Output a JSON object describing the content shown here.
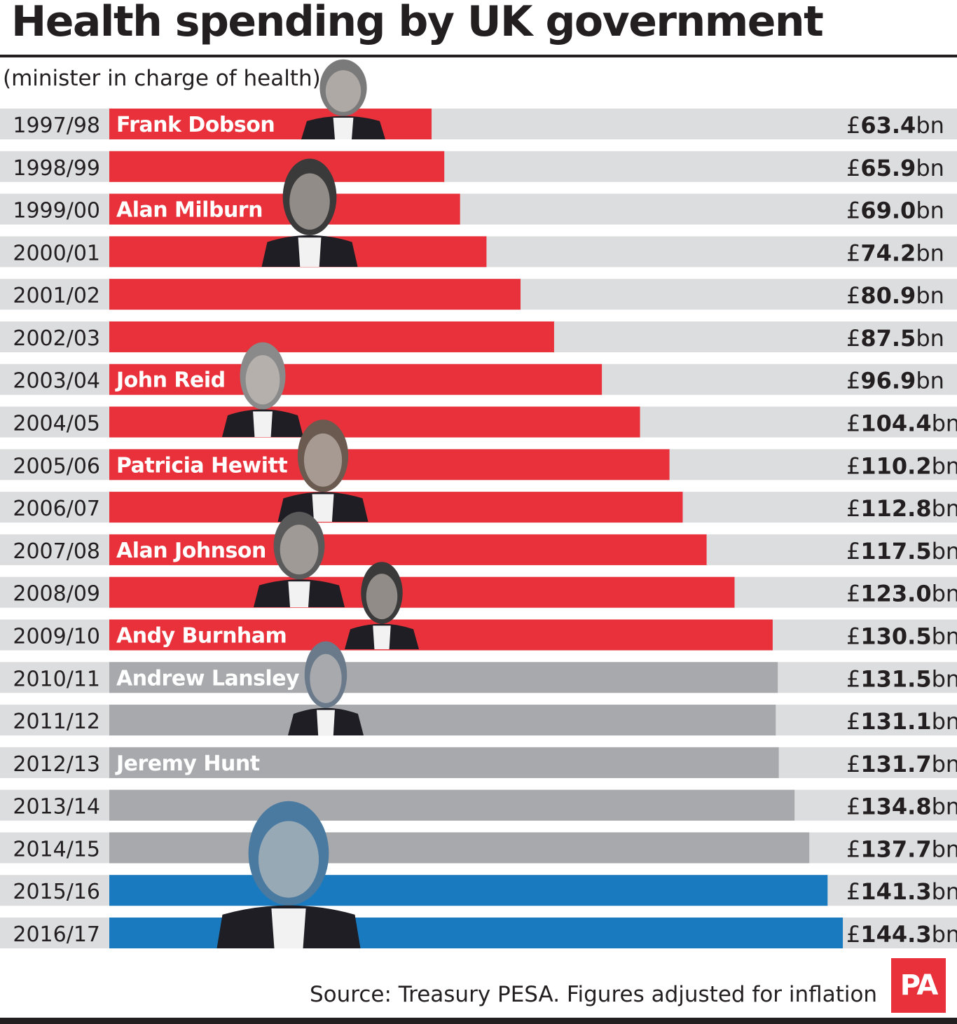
{
  "title": "Health spending by UK government",
  "subtitle": "(minister in charge of health)",
  "source": "Source: Treasury PESA. Figures adjusted for inflation",
  "logo": "PA",
  "colors": {
    "labour": "#e8313a",
    "coalition": "#a7a9ac",
    "conservative": "#1a7abf",
    "track": "#dcddde",
    "text": "#231f20"
  },
  "chart_data": {
    "type": "bar",
    "orientation": "horizontal",
    "title": "Health spending by UK government",
    "unit_prefix": "£",
    "unit_suffix": "bn",
    "categories": [
      "1997/98",
      "1998/99",
      "1999/00",
      "2000/01",
      "2001/02",
      "2002/03",
      "2003/04",
      "2004/05",
      "2005/06",
      "2006/07",
      "2007/08",
      "2008/09",
      "2009/10",
      "2010/11",
      "2011/12",
      "2012/13",
      "2013/14",
      "2014/15",
      "2015/16",
      "2016/17"
    ],
    "values": [
      63.4,
      65.9,
      69.0,
      74.2,
      80.9,
      87.5,
      96.9,
      104.4,
      110.2,
      112.8,
      117.5,
      123.0,
      130.5,
      131.5,
      131.1,
      131.7,
      134.8,
      137.7,
      141.3,
      144.3
    ],
    "value_labels": [
      "63.4",
      "65.9",
      "69.0",
      "74.2",
      "80.9",
      "87.5",
      "96.9",
      "104.4",
      "110.2",
      "112.8",
      "117.5",
      "123.0",
      "130.5",
      "131.5",
      "131.1",
      "131.7",
      "134.8",
      "137.7",
      "141.3",
      "144.3"
    ],
    "bar_colors": [
      "labour",
      "labour",
      "labour",
      "labour",
      "labour",
      "labour",
      "labour",
      "labour",
      "labour",
      "labour",
      "labour",
      "labour",
      "labour",
      "coalition",
      "coalition",
      "coalition",
      "coalition",
      "coalition",
      "conservative",
      "conservative"
    ],
    "xlim": [
      0,
      170
    ],
    "grid": false,
    "annotations": [
      {
        "row": 0,
        "text": "Frank Dobson"
      },
      {
        "row": 2,
        "text": "Alan Milburn"
      },
      {
        "row": 6,
        "text": "John Reid"
      },
      {
        "row": 8,
        "text": "Patricia Hewitt"
      },
      {
        "row": 10,
        "text": "Alan Johnson"
      },
      {
        "row": 12,
        "text": "Andy Burnham"
      },
      {
        "row": 13,
        "text": "Andrew Lansley"
      },
      {
        "row": 15,
        "text": "Jeremy Hunt"
      }
    ]
  }
}
